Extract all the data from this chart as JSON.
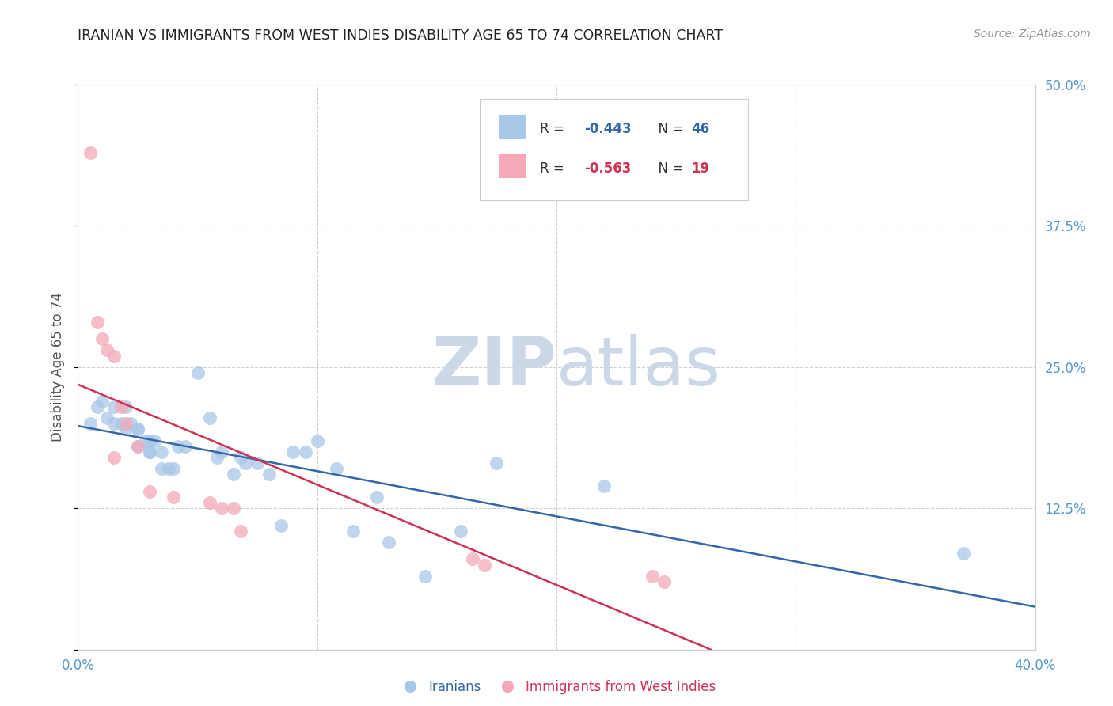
{
  "title": "IRANIAN VS IMMIGRANTS FROM WEST INDIES DISABILITY AGE 65 TO 74 CORRELATION CHART",
  "source": "Source: ZipAtlas.com",
  "ylabel": "Disability Age 65 to 74",
  "xmin": 0.0,
  "xmax": 0.4,
  "ymin": 0.0,
  "ymax": 0.5,
  "xticks": [
    0.0,
    0.1,
    0.2,
    0.3,
    0.4
  ],
  "yticks": [
    0.0,
    0.125,
    0.25,
    0.375,
    0.5
  ],
  "legend_R_blue": "-0.443",
  "legend_N_blue": "46",
  "legend_R_pink": "-0.563",
  "legend_N_pink": "19",
  "legend_label_blue": "Iranians",
  "legend_label_pink": "Immigrants from West Indies",
  "blue_dot_color": "#a8c8e8",
  "pink_dot_color": "#f4a8b8",
  "blue_line_color": "#3366aa",
  "pink_line_color": "#cc3355",
  "tick_color": "#5599cc",
  "watermark_color": "#ccd8e8",
  "iranians_x": [
    0.005,
    0.008,
    0.01,
    0.012,
    0.015,
    0.015,
    0.018,
    0.02,
    0.02,
    0.022,
    0.025,
    0.025,
    0.025,
    0.028,
    0.03,
    0.03,
    0.03,
    0.032,
    0.035,
    0.035,
    0.038,
    0.04,
    0.042,
    0.045,
    0.05,
    0.055,
    0.058,
    0.06,
    0.065,
    0.068,
    0.07,
    0.075,
    0.08,
    0.085,
    0.09,
    0.095,
    0.1,
    0.108,
    0.115,
    0.125,
    0.13,
    0.145,
    0.16,
    0.175,
    0.22,
    0.37
  ],
  "iranians_y": [
    0.2,
    0.215,
    0.22,
    0.205,
    0.215,
    0.2,
    0.2,
    0.215,
    0.195,
    0.2,
    0.195,
    0.18,
    0.195,
    0.185,
    0.175,
    0.185,
    0.175,
    0.185,
    0.16,
    0.175,
    0.16,
    0.16,
    0.18,
    0.18,
    0.245,
    0.205,
    0.17,
    0.175,
    0.155,
    0.17,
    0.165,
    0.165,
    0.155,
    0.11,
    0.175,
    0.175,
    0.185,
    0.16,
    0.105,
    0.135,
    0.095,
    0.065,
    0.105,
    0.165,
    0.145,
    0.085
  ],
  "west_indies_x": [
    0.005,
    0.008,
    0.01,
    0.012,
    0.015,
    0.015,
    0.018,
    0.02,
    0.025,
    0.03,
    0.04,
    0.055,
    0.06,
    0.065,
    0.068,
    0.165,
    0.17,
    0.24,
    0.245
  ],
  "west_indies_y": [
    0.44,
    0.29,
    0.275,
    0.265,
    0.26,
    0.17,
    0.215,
    0.2,
    0.18,
    0.14,
    0.135,
    0.13,
    0.125,
    0.125,
    0.105,
    0.08,
    0.075,
    0.065,
    0.06
  ]
}
